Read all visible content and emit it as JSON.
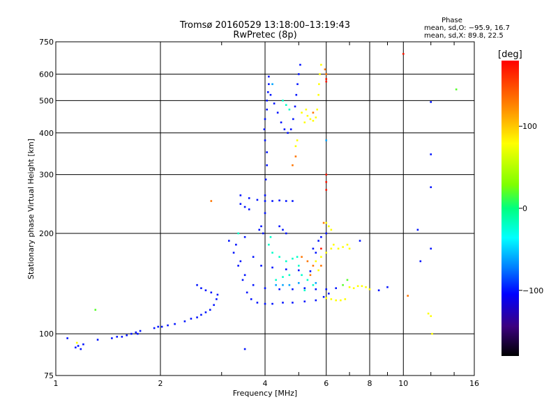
{
  "chart_data": {
    "type": "scatter",
    "title": "Tromsø 20160529 13:18:00–13:19:43",
    "subtitle": "RwPretec (8p)",
    "xlabel": "Frequency [MHz]",
    "ylabel": "Stationary phase Virtual Height [km]",
    "xscale": "log",
    "yscale": "log",
    "xlim": [
      1,
      16
    ],
    "ylim": [
      75,
      750
    ],
    "xticks": [
      1,
      2,
      4,
      6,
      8,
      10,
      16
    ],
    "yticks": [
      75,
      100,
      200,
      300,
      400,
      500,
      600,
      750
    ],
    "xgrid": [
      2,
      4,
      6,
      8,
      10
    ],
    "ygrid": [
      100,
      200,
      300,
      400,
      500,
      600
    ],
    "phase_box": {
      "heading": "Phase",
      "line_o": "mean, sd,O: −95.9, 16.7",
      "line_x": "mean, sd,X: 89.8, 22.5"
    },
    "colorbar": {
      "label": "[deg]",
      "ticks": [
        100,
        0,
        -100
      ],
      "range": [
        -180,
        180
      ]
    },
    "series": [
      {
        "phase": -100,
        "points": [
          [
            1.08,
            97
          ],
          [
            1.14,
            91
          ],
          [
            1.16,
            92
          ],
          [
            1.18,
            90
          ],
          [
            1.2,
            93
          ],
          [
            1.32,
            96
          ],
          [
            1.45,
            97
          ],
          [
            1.5,
            98
          ],
          [
            1.55,
            98
          ],
          [
            1.6,
            99
          ],
          [
            1.65,
            100
          ],
          [
            1.7,
            101
          ],
          [
            1.75,
            102
          ],
          [
            1.72,
            100
          ],
          [
            1.92,
            104
          ],
          [
            1.97,
            105
          ],
          [
            2.02,
            105
          ],
          [
            2.1,
            106
          ],
          [
            2.2,
            107
          ],
          [
            2.35,
            109
          ],
          [
            2.45,
            111
          ],
          [
            2.55,
            112
          ],
          [
            2.62,
            114
          ],
          [
            2.7,
            116
          ],
          [
            2.78,
            118
          ],
          [
            2.85,
            122
          ],
          [
            2.9,
            127
          ],
          [
            2.92,
            131
          ],
          [
            2.55,
            140
          ],
          [
            2.62,
            137
          ],
          [
            2.7,
            135
          ],
          [
            2.8,
            133
          ],
          [
            3.15,
            190
          ],
          [
            3.25,
            175
          ],
          [
            3.35,
            160
          ],
          [
            3.45,
            145
          ],
          [
            3.55,
            133
          ],
          [
            3.65,
            127
          ],
          [
            3.8,
            124
          ],
          [
            4.0,
            123
          ],
          [
            4.2,
            123
          ],
          [
            4.5,
            124
          ],
          [
            4.8,
            124
          ],
          [
            5.2,
            125
          ],
          [
            5.6,
            126
          ],
          [
            5.9,
            129
          ],
          [
            6.1,
            132
          ],
          [
            3.3,
            185
          ],
          [
            3.4,
            165
          ],
          [
            3.5,
            150
          ],
          [
            3.7,
            140
          ],
          [
            4.0,
            137
          ],
          [
            4.4,
            136
          ],
          [
            4.8,
            136
          ],
          [
            5.2,
            137
          ],
          [
            5.6,
            136
          ],
          [
            6.0,
            136
          ],
          [
            6.4,
            137
          ],
          [
            3.5,
            195
          ],
          [
            3.7,
            170
          ],
          [
            3.9,
            160
          ],
          [
            4.2,
            158
          ],
          [
            4.6,
            156
          ],
          [
            5.0,
            155
          ],
          [
            5.4,
            154
          ],
          [
            3.4,
            260
          ],
          [
            3.6,
            255
          ],
          [
            3.8,
            252
          ],
          [
            4.0,
            250
          ],
          [
            4.2,
            250
          ],
          [
            4.4,
            251
          ],
          [
            4.6,
            250
          ],
          [
            4.8,
            250
          ],
          [
            3.4,
            245
          ],
          [
            3.5,
            240
          ],
          [
            3.6,
            236
          ],
          [
            3.95,
            200
          ],
          [
            4.0,
            230
          ],
          [
            4.0,
            260
          ],
          [
            4.02,
            290
          ],
          [
            4.05,
            320
          ],
          [
            4.05,
            350
          ],
          [
            4.0,
            380
          ],
          [
            3.98,
            410
          ],
          [
            4.0,
            440
          ],
          [
            4.05,
            470
          ],
          [
            4.05,
            500
          ],
          [
            4.08,
            530
          ],
          [
            4.1,
            560
          ],
          [
            4.1,
            590
          ],
          [
            4.15,
            520
          ],
          [
            4.25,
            490
          ],
          [
            4.35,
            460
          ],
          [
            4.45,
            430
          ],
          [
            4.55,
            410
          ],
          [
            4.65,
            400
          ],
          [
            4.75,
            410
          ],
          [
            4.82,
            440
          ],
          [
            4.88,
            480
          ],
          [
            4.92,
            520
          ],
          [
            4.96,
            560
          ],
          [
            5.0,
            600
          ],
          [
            5.05,
            640
          ],
          [
            4.4,
            210
          ],
          [
            4.5,
            205
          ],
          [
            4.6,
            200
          ],
          [
            3.9,
            210
          ],
          [
            3.85,
            205
          ],
          [
            5.5,
            180
          ],
          [
            5.6,
            175
          ],
          [
            5.7,
            190
          ],
          [
            5.8,
            195
          ],
          [
            6.0,
            200
          ],
          [
            7.5,
            190
          ],
          [
            8.5,
            135
          ],
          [
            9.0,
            138
          ],
          [
            11.2,
            165
          ],
          [
            12.0,
            495
          ],
          [
            12.0,
            345
          ],
          [
            12.0,
            275
          ],
          [
            12.0,
            180
          ],
          [
            11.0,
            205
          ],
          [
            3.5,
            90
          ]
        ]
      },
      {
        "phase": -20,
        "points": [
          [
            4.2,
            175
          ],
          [
            4.4,
            170
          ],
          [
            4.6,
            165
          ],
          [
            4.8,
            168
          ],
          [
            4.3,
            145
          ],
          [
            4.5,
            148
          ],
          [
            4.7,
            150
          ],
          [
            5.1,
            150
          ],
          [
            5.3,
            145
          ],
          [
            5.5,
            140
          ],
          [
            4.1,
            185
          ],
          [
            4.15,
            195
          ],
          [
            4.95,
            170
          ],
          [
            5.0,
            160
          ],
          [
            5.2,
            135
          ],
          [
            4.5,
            500
          ],
          [
            4.6,
            485
          ],
          [
            4.7,
            470
          ],
          [
            3.35,
            200
          ]
        ]
      },
      {
        "phase": 80,
        "points": [
          [
            5.3,
            450
          ],
          [
            5.4,
            440
          ],
          [
            5.5,
            435
          ],
          [
            5.6,
            445
          ],
          [
            5.65,
            470
          ],
          [
            5.7,
            520
          ],
          [
            5.72,
            560
          ],
          [
            5.75,
            600
          ],
          [
            5.8,
            640
          ],
          [
            5.25,
            470
          ],
          [
            5.2,
            430
          ],
          [
            5.1,
            460
          ],
          [
            6.0,
            215
          ],
          [
            6.1,
            210
          ],
          [
            6.2,
            205
          ],
          [
            6.3,
            185
          ],
          [
            6.5,
            180
          ],
          [
            6.7,
            182
          ],
          [
            6.9,
            185
          ],
          [
            7.0,
            180
          ],
          [
            6.2,
            180
          ],
          [
            6.0,
            175
          ],
          [
            5.8,
            170
          ],
          [
            6.0,
            128
          ],
          [
            6.2,
            127
          ],
          [
            6.4,
            126
          ],
          [
            6.6,
            126
          ],
          [
            6.8,
            127
          ],
          [
            7.0,
            138
          ],
          [
            7.2,
            137
          ],
          [
            7.4,
            139
          ],
          [
            7.6,
            139
          ],
          [
            7.8,
            138
          ],
          [
            8.0,
            136
          ],
          [
            5.6,
            165
          ],
          [
            5.7,
            155
          ],
          [
            4.95,
            380
          ],
          [
            4.9,
            365
          ],
          [
            11.8,
            115
          ],
          [
            12.0,
            113
          ],
          [
            12.1,
            100
          ],
          [
            1.15,
            94
          ]
        ]
      },
      {
        "phase": 130,
        "points": [
          [
            5.1,
            170
          ],
          [
            5.3,
            165
          ],
          [
            5.5,
            160
          ],
          [
            5.4,
            150
          ],
          [
            5.8,
            160
          ],
          [
            5.95,
            620
          ],
          [
            6.0,
            600
          ],
          [
            4.9,
            340
          ],
          [
            4.8,
            320
          ],
          [
            5.9,
            215
          ],
          [
            2.8,
            250
          ],
          [
            5.5,
            460
          ],
          [
            10.3,
            130
          ]
        ]
      },
      {
        "phase": 170,
        "points": [
          [
            6.0,
            580
          ],
          [
            6.0,
            570
          ],
          [
            6.0,
            300
          ],
          [
            6.0,
            285
          ],
          [
            6.0,
            270
          ],
          [
            10.0,
            690
          ],
          [
            5.8,
            180
          ]
        ]
      },
      {
        "phase": 20,
        "points": [
          [
            1.3,
            118
          ],
          [
            14.2,
            540
          ],
          [
            6.7,
            140
          ],
          [
            6.9,
            145
          ]
        ]
      },
      {
        "phase": -60,
        "points": [
          [
            4.3,
            140
          ],
          [
            4.5,
            140
          ],
          [
            4.7,
            140
          ],
          [
            5.0,
            142
          ],
          [
            5.6,
            142
          ],
          [
            6.0,
            380
          ],
          [
            4.2,
            560
          ]
        ]
      }
    ]
  }
}
